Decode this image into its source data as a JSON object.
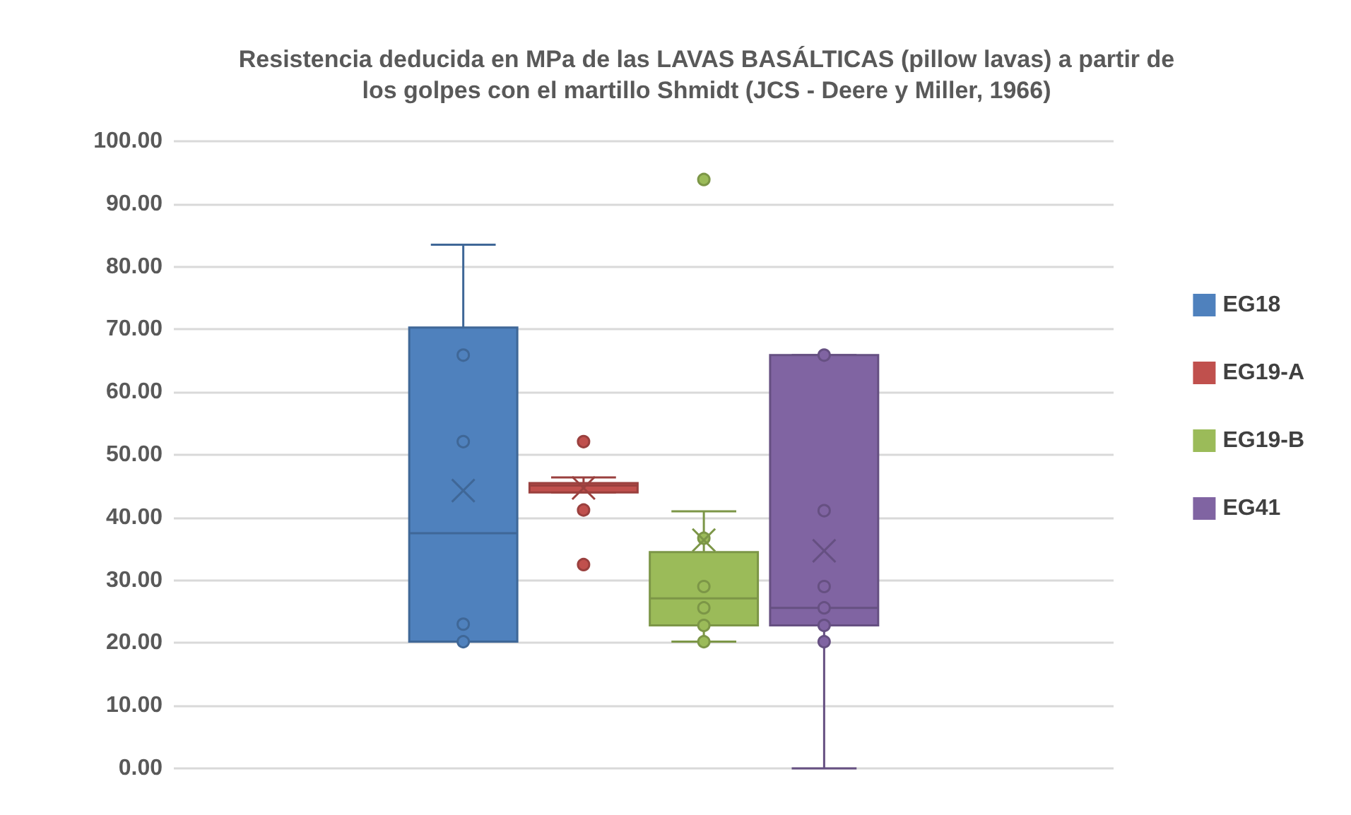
{
  "chart_data": {
    "type": "box",
    "title": "Resistencia deducida en MPa de las LAVAS BASÁLTICAS (pillow lavas) a partir de\nlos golpes con el martillo Shmidt (JCS - Deere y Miller, 1966)",
    "categories": [
      null
    ],
    "series": [
      {
        "name": "EG18",
        "color": "#4f81bd",
        "boxes": [
          {
            "low": 20.2,
            "q1": 20.2,
            "median": 37.5,
            "q3": 70.3,
            "high": 83.5,
            "mean": 44.3,
            "outliers": [
              65.9,
              52.1,
              23.0,
              20.2
            ]
          }
        ]
      },
      {
        "name": "EG19-A",
        "color": "#c0504d",
        "boxes": [
          {
            "low": 44.0,
            "q1": 44.0,
            "median": 45.1,
            "q3": 45.5,
            "high": 46.4,
            "mean": 44.7,
            "outliers": [
              52.1,
              41.2,
              32.5
            ]
          }
        ]
      },
      {
        "name": "EG19-B",
        "color": "#9bbb59",
        "boxes": [
          {
            "low": 20.2,
            "q1": 22.8,
            "median": 27.1,
            "q3": 34.5,
            "high": 41.0,
            "mean": 36.4,
            "outliers": [
              93.9,
              36.7,
              29.0,
              25.6,
              22.8,
              20.2
            ]
          }
        ]
      },
      {
        "name": "EG41",
        "color": "#8064a2",
        "boxes": [
          {
            "low": 0,
            "q1": 22.8,
            "median": 25.6,
            "q3": 65.9,
            "high": 65.9,
            "mean": 34.7,
            "outliers": [
              65.9,
              41.1,
              29.0,
              25.6,
              22.8,
              20.2
            ]
          }
        ]
      }
    ],
    "ylim": [
      0,
      100
    ],
    "yticks": [
      {
        "value": 0,
        "label": "0.00"
      },
      {
        "value": 10,
        "label": "10.00"
      },
      {
        "value": 20,
        "label": "20.00"
      },
      {
        "value": 30,
        "label": "30.00"
      },
      {
        "value": 40,
        "label": "40.00"
      },
      {
        "value": 50,
        "label": "50.00"
      },
      {
        "value": 60,
        "label": "60.00"
      },
      {
        "value": 70,
        "label": "70.00"
      },
      {
        "value": 80,
        "label": "80.00"
      },
      {
        "value": 90,
        "label": "90.00"
      },
      {
        "value": 100,
        "label": "100.00"
      }
    ],
    "grid": "y",
    "legend": "right"
  }
}
